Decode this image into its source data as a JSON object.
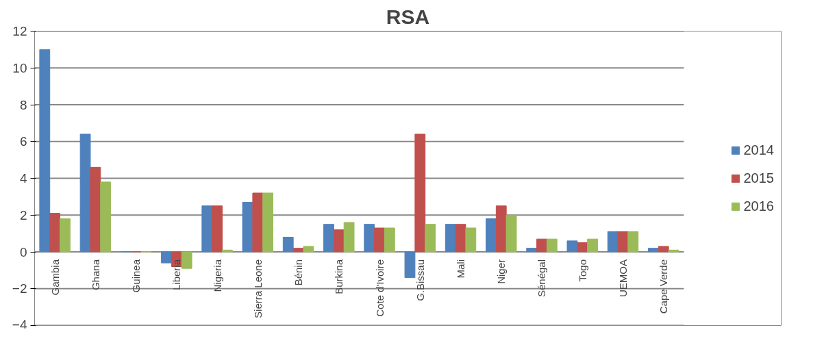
{
  "chart_data": {
    "type": "bar",
    "title": "RSA",
    "categories": [
      "Gambia",
      "Ghana",
      "Guinea",
      "Liberia",
      "Nigeria",
      "Sierra Leone",
      "Bénin",
      "Burkina",
      "Cote d'Ivoire",
      "G.Bissau",
      "Mali",
      "Niger",
      "Sénégal",
      "Togo",
      "UEMOA",
      "Cape Verde"
    ],
    "series": [
      {
        "name": "2014",
        "color": "#4f81bd",
        "values": [
          11.0,
          6.4,
          0,
          -0.6,
          2.5,
          2.7,
          0.8,
          1.5,
          1.5,
          -1.4,
          1.5,
          1.8,
          0.2,
          0.6,
          1.1,
          0.2
        ]
      },
      {
        "name": "2015",
        "color": "#c0504d",
        "values": [
          2.1,
          4.6,
          0,
          -0.8,
          2.5,
          3.2,
          0.2,
          1.2,
          1.3,
          6.4,
          1.5,
          2.5,
          0.7,
          0.5,
          1.1,
          0.3
        ]
      },
      {
        "name": "2016",
        "color": "#9bbb59",
        "values": [
          1.8,
          3.8,
          0,
          -0.9,
          0.1,
          3.2,
          0.3,
          1.6,
          1.3,
          1.5,
          1.3,
          2.0,
          0.7,
          0.7,
          1.1,
          0.1
        ]
      }
    ],
    "ylim": [
      -4,
      12
    ],
    "yticks": [
      -4,
      -2,
      0,
      2,
      4,
      6,
      8,
      10,
      12
    ],
    "grid": "y",
    "legend": "right"
  }
}
